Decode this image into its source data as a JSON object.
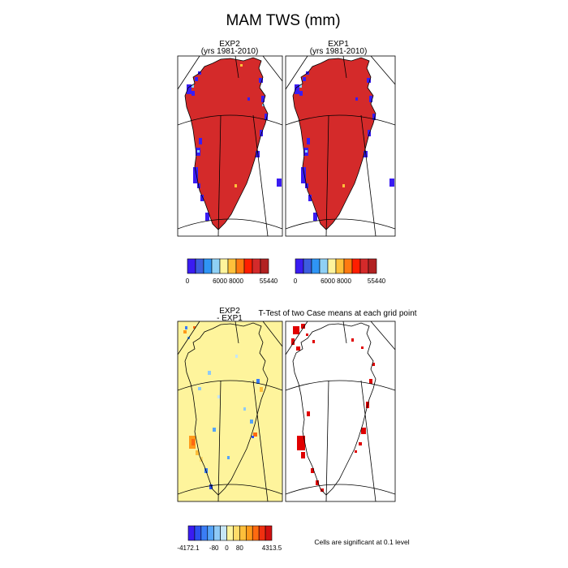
{
  "title": "MAM TWS (mm)",
  "panels": {
    "exp2": {
      "line1": "EXP2",
      "line2": "(yrs 1981-2010)"
    },
    "exp1": {
      "line1": "EXP1",
      "line2": "(yrs 1981-2010)"
    },
    "diff": {
      "line1": "EXP2",
      "line2": "- EXP1"
    },
    "ttest": {
      "title": "T-Test of two Case means at each grid point"
    }
  },
  "legend_note": "Cells are significant at 0.1 level",
  "colors": {
    "land_high": "#d42a2a",
    "ocean_low": "#3b1ef0",
    "diff_near_zero": "#fef49c",
    "significant": "#e00000"
  },
  "chart_data": [
    {
      "type": "heatmap",
      "panel": "EXP2 (yrs 1981-2010)",
      "colorbar": {
        "colors": [
          "#3a1cf2",
          "#3c5ddf",
          "#2f95f5",
          "#8fd0f5",
          "#fef49c",
          "#fec13b",
          "#fe7a10",
          "#ff1e00",
          "#d42a2a",
          "#b22222"
        ],
        "tick_labels": [
          "0",
          "6000",
          "8000",
          "55440"
        ]
      }
    },
    {
      "type": "heatmap",
      "panel": "EXP1 (yrs 1981-2010)",
      "colorbar": {
        "colors": [
          "#3a1cf2",
          "#3c5ddf",
          "#2f95f5",
          "#8fd0f5",
          "#fef49c",
          "#fec13b",
          "#fe7a10",
          "#ff1e00",
          "#d42a2a",
          "#b22222"
        ],
        "tick_labels": [
          "0",
          "6000",
          "8000",
          "55440"
        ]
      }
    },
    {
      "type": "heatmap",
      "panel": "EXP2 - EXP1",
      "colorbar": {
        "colors": [
          "#3a1cf2",
          "#2b50f0",
          "#3a7df6",
          "#55a4f8",
          "#8fcaf6",
          "#c6e6f6",
          "#fef49c",
          "#fedc6a",
          "#febf3a",
          "#fe9a1a",
          "#fe6a10",
          "#f03010",
          "#d01010"
        ],
        "tick_labels": [
          "-4172.1",
          "-80",
          "0",
          "80",
          "4313.5"
        ]
      }
    },
    {
      "type": "heatmap",
      "panel": "T-Test of two Case means at each grid point",
      "note": "Cells are significant at 0.1 level"
    }
  ]
}
